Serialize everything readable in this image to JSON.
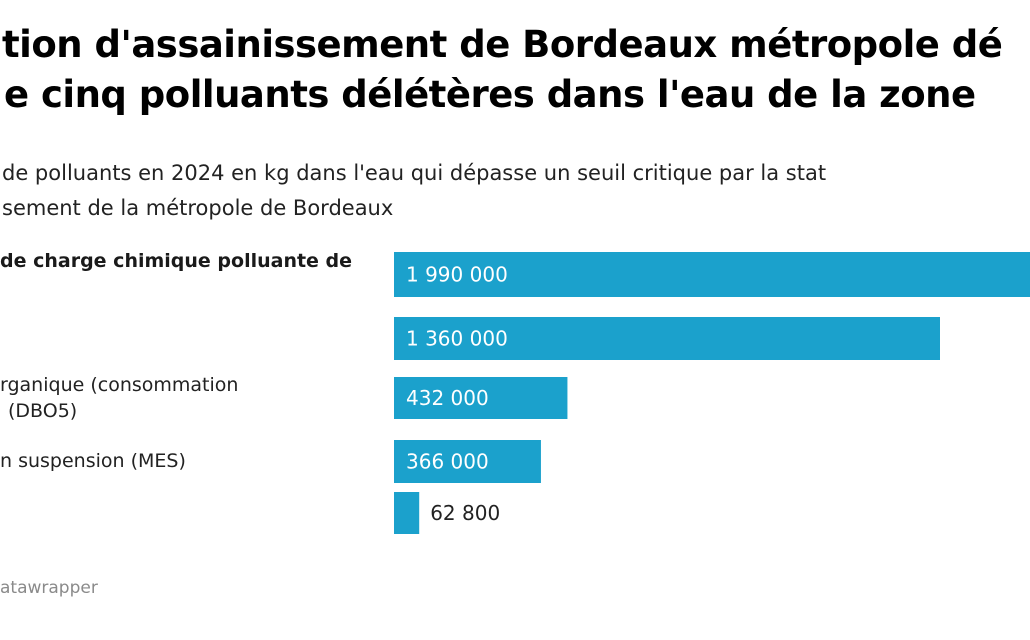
{
  "title": {
    "line1": "tion d'assainissement de Bordeaux métropole dé",
    "line2": "e cinq polluants délétères dans l'eau de la zone"
  },
  "subtitle": {
    "line1": "de polluants en 2024 en kg dans l'eau qui dépasse un seuil critique par la stat",
    "line2": "sement de la métropole de Bordeaux"
  },
  "rows": [
    {
      "label_lines": [
        "de charge chimique polluante de",
        ""
      ],
      "bold": true
    },
    {
      "label_lines": [
        ""
      ],
      "bold": false
    },
    {
      "label_lines": [
        "rganique (consommation",
        "(DBO5)"
      ],
      "bold": false
    },
    {
      "label_lines": [
        "n suspension (MES)"
      ],
      "bold": false
    },
    {
      "label_lines": [
        ""
      ],
      "bold": false
    }
  ],
  "footer": {
    "credit": "atawrapper"
  },
  "colors": {
    "bar": "#1ba1cc",
    "label_inside": "#ffffff",
    "label_outside": "#222222"
  },
  "chart_data": {
    "type": "bar",
    "orientation": "horizontal",
    "title": "tion d'assainissement de Bordeaux métropole dé… / e cinq polluants délétères dans l'eau de la zone",
    "subtitle": "de polluants en 2024 en kg dans l'eau qui dépasse un seuil critique par la stat… / sement de la métropole de Bordeaux",
    "unit": "kg",
    "categories": [
      "de charge chimique polluante de",
      "",
      "rganique (consommation (DBO5)",
      "n suspension (MES)",
      ""
    ],
    "values": [
      1990000,
      1360000,
      432000,
      366000,
      62800
    ],
    "value_labels": [
      "1 990 000",
      "1 360 000",
      "432 000",
      "366 000",
      "62 800"
    ],
    "xlabel": "",
    "ylabel": "",
    "xlim": [
      0,
      1990000
    ],
    "grid": false,
    "legend": "none",
    "source": "atawrapper"
  }
}
